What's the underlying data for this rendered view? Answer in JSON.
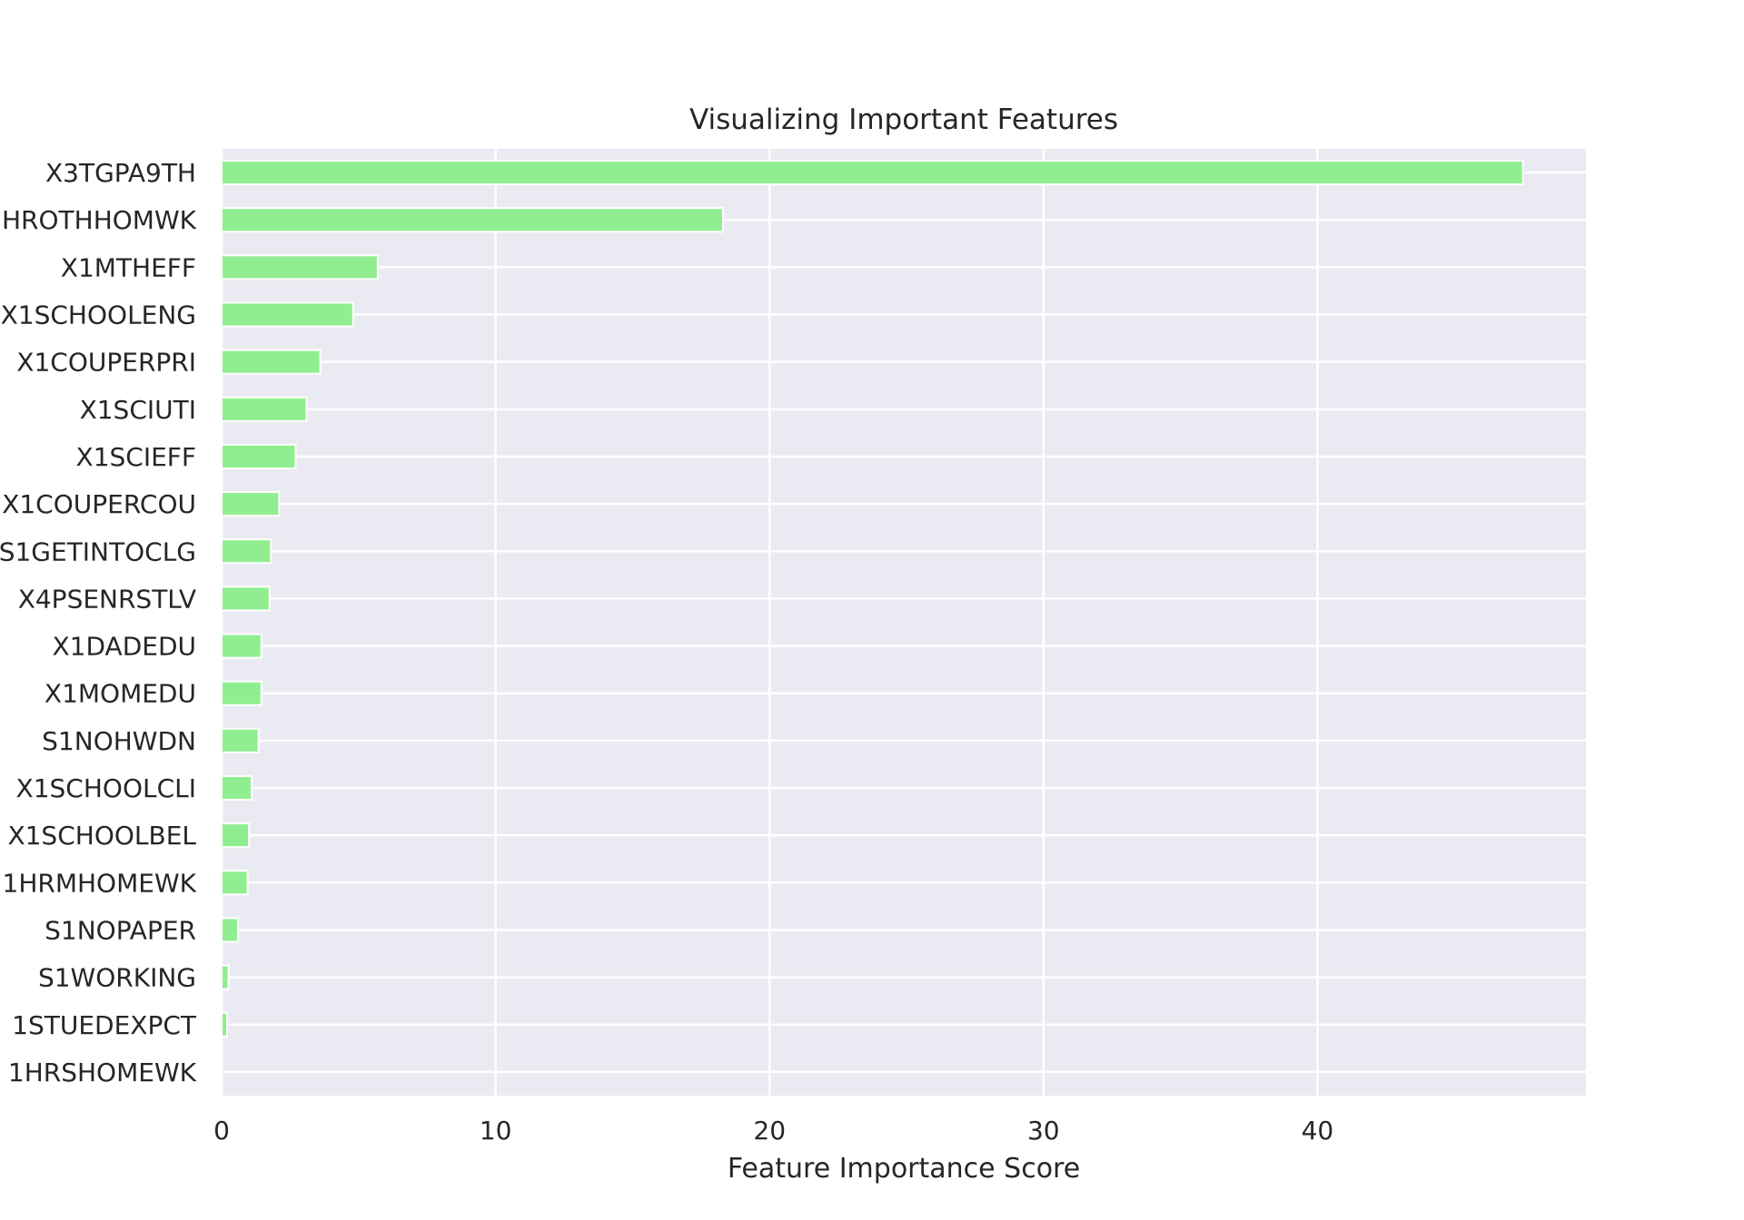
{
  "chart_data": {
    "type": "bar",
    "orientation": "horizontal",
    "title": "Visualizing Important Features",
    "xlabel": "Feature Importance Score",
    "ylabel": "",
    "xlim": [
      0,
      49.8
    ],
    "xticks": [
      0,
      10,
      20,
      30,
      40
    ],
    "xtick_labels": [
      "0",
      "10",
      "20",
      "30",
      "40"
    ],
    "grid": true,
    "colors": {
      "bar": "#90ee90",
      "bar_edge": "#ffffff",
      "plot_background": "#eaeaf2",
      "grid": "#ffffff",
      "text": "#262626"
    },
    "categories": [
      "X3TGPA9TH",
      "HROTHHOMWK",
      "X1MTHEFF",
      "X1SCHOOLENG",
      "X1COUPERPRI",
      "X1SCIUTI",
      "X1SCIEFF",
      "X1COUPERCOU",
      "S1GETINTOCLG",
      "X4PSENRSTLV",
      "X1DADEDU",
      "X1MOMEDU",
      "S1NOHWDN",
      "X1SCHOOLCLI",
      "X1SCHOOLBEL",
      "1HRMHOMEWK",
      "S1NOPAPER",
      "S1WORKING",
      "1STUEDEXPCT",
      "1HRSHOMEWK"
    ],
    "values": [
      47.5,
      18.3,
      5.7,
      4.8,
      3.6,
      3.1,
      2.7,
      2.1,
      1.8,
      1.75,
      1.45,
      1.45,
      1.35,
      1.1,
      1.0,
      0.95,
      0.6,
      0.25,
      0.2,
      0.0
    ]
  }
}
